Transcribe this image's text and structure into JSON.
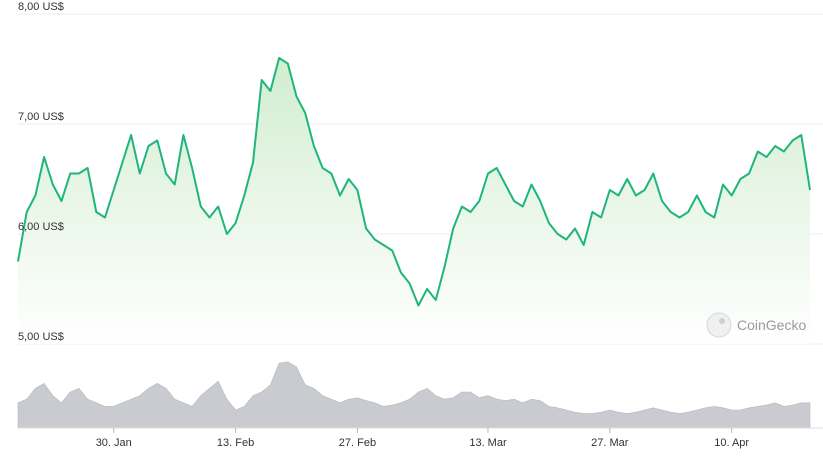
{
  "chart_data": {
    "type": "area",
    "watermark": "CoinGecko",
    "y_unit_suffix": " US$",
    "ylim": [
      5,
      8
    ],
    "yticks": [
      5,
      6,
      7,
      8
    ],
    "ytick_labels": [
      "5,00 US$",
      "6,00 US$",
      "7,00 US$",
      "8,00 US$"
    ],
    "xlim": [
      "2024-01-19",
      "2024-04-19"
    ],
    "xticks": [
      "2024-01-30",
      "2024-02-13",
      "2024-02-27",
      "2024-03-13",
      "2024-03-27",
      "2024-04-10"
    ],
    "xtick_labels": [
      "30. Jan",
      "13. Feb",
      "27. Feb",
      "13. Mar",
      "27. Mar",
      "10. Apr"
    ],
    "grid": true,
    "legend": "none",
    "colors": {
      "line": "#1fb57b",
      "fill_top": "#cfeccc",
      "fill_bottom": "#ffffff",
      "volume": "#c9cbd1",
      "grid": "#ececec"
    },
    "series": [
      {
        "x": [
          "2024-01-19",
          "2024-01-20",
          "2024-01-21",
          "2024-01-22",
          "2024-01-23",
          "2024-01-24",
          "2024-01-25",
          "2024-01-26",
          "2024-01-27",
          "2024-01-28",
          "2024-01-29",
          "2024-01-30",
          "2024-01-31",
          "2024-02-01",
          "2024-02-02",
          "2024-02-03",
          "2024-02-04",
          "2024-02-05",
          "2024-02-06",
          "2024-02-07",
          "2024-02-08",
          "2024-02-09",
          "2024-02-10",
          "2024-02-11",
          "2024-02-12",
          "2024-02-13",
          "2024-02-14",
          "2024-02-15",
          "2024-02-16",
          "2024-02-17",
          "2024-02-18",
          "2024-02-19",
          "2024-02-20",
          "2024-02-21",
          "2024-02-22",
          "2024-02-23",
          "2024-02-24",
          "2024-02-25",
          "2024-02-26",
          "2024-02-27",
          "2024-02-28",
          "2024-02-29",
          "2024-03-01",
          "2024-03-02",
          "2024-03-03",
          "2024-03-04",
          "2024-03-05",
          "2024-03-06",
          "2024-03-07",
          "2024-03-08",
          "2024-03-09",
          "2024-03-10",
          "2024-03-11",
          "2024-03-12",
          "2024-03-13",
          "2024-03-14",
          "2024-03-15",
          "2024-03-16",
          "2024-03-17",
          "2024-03-18",
          "2024-03-19",
          "2024-03-20",
          "2024-03-21",
          "2024-03-22",
          "2024-03-23",
          "2024-03-24",
          "2024-03-25",
          "2024-03-26",
          "2024-03-27",
          "2024-03-28",
          "2024-03-29",
          "2024-03-30",
          "2024-03-31",
          "2024-04-01",
          "2024-04-02",
          "2024-04-03",
          "2024-04-04",
          "2024-04-05",
          "2024-04-06",
          "2024-04-07",
          "2024-04-08",
          "2024-04-09",
          "2024-04-10",
          "2024-04-11",
          "2024-04-12",
          "2024-04-13",
          "2024-04-14",
          "2024-04-15",
          "2024-04-16",
          "2024-04-17",
          "2024-04-18",
          "2024-04-19"
        ],
        "values": [
          5.75,
          6.2,
          6.35,
          6.7,
          6.45,
          6.3,
          6.55,
          6.55,
          6.6,
          6.2,
          6.15,
          6.4,
          6.65,
          6.9,
          6.55,
          6.8,
          6.85,
          6.55,
          6.45,
          6.9,
          6.6,
          6.25,
          6.15,
          6.25,
          6.0,
          6.1,
          6.35,
          6.65,
          7.4,
          7.3,
          7.6,
          7.55,
          7.25,
          7.1,
          6.8,
          6.6,
          6.55,
          6.35,
          6.5,
          6.4,
          6.05,
          5.95,
          5.9,
          5.85,
          5.65,
          5.55,
          5.35,
          5.5,
          5.4,
          5.7,
          6.05,
          6.25,
          6.2,
          6.3,
          6.55,
          6.6,
          6.45,
          6.3,
          6.25,
          6.45,
          6.3,
          6.1,
          6.0,
          5.95,
          6.05,
          5.9,
          6.2,
          6.15,
          6.4,
          6.35,
          6.5,
          6.35,
          6.4,
          6.55,
          6.3,
          6.2,
          6.15,
          6.2,
          6.35,
          6.2,
          6.15,
          6.45,
          6.35,
          6.5,
          6.55,
          6.75,
          6.7,
          6.8,
          6.75,
          6.85,
          6.9,
          6.4
        ],
        "volume": [
          0.35,
          0.4,
          0.55,
          0.62,
          0.45,
          0.35,
          0.5,
          0.55,
          0.4,
          0.35,
          0.3,
          0.3,
          0.35,
          0.4,
          0.45,
          0.55,
          0.62,
          0.55,
          0.4,
          0.35,
          0.3,
          0.45,
          0.55,
          0.65,
          0.4,
          0.25,
          0.3,
          0.45,
          0.5,
          0.6,
          0.9,
          0.92,
          0.85,
          0.6,
          0.55,
          0.45,
          0.4,
          0.35,
          0.4,
          0.42,
          0.38,
          0.35,
          0.3,
          0.32,
          0.35,
          0.4,
          0.5,
          0.55,
          0.45,
          0.4,
          0.42,
          0.5,
          0.5,
          0.42,
          0.45,
          0.4,
          0.38,
          0.4,
          0.35,
          0.4,
          0.38,
          0.3,
          0.28,
          0.25,
          0.22,
          0.2,
          0.2,
          0.22,
          0.25,
          0.22,
          0.2,
          0.22,
          0.25,
          0.28,
          0.25,
          0.22,
          0.2,
          0.22,
          0.25,
          0.28,
          0.3,
          0.28,
          0.25,
          0.25,
          0.28,
          0.3,
          0.32,
          0.35,
          0.3,
          0.32,
          0.35,
          0.35
        ]
      }
    ]
  }
}
